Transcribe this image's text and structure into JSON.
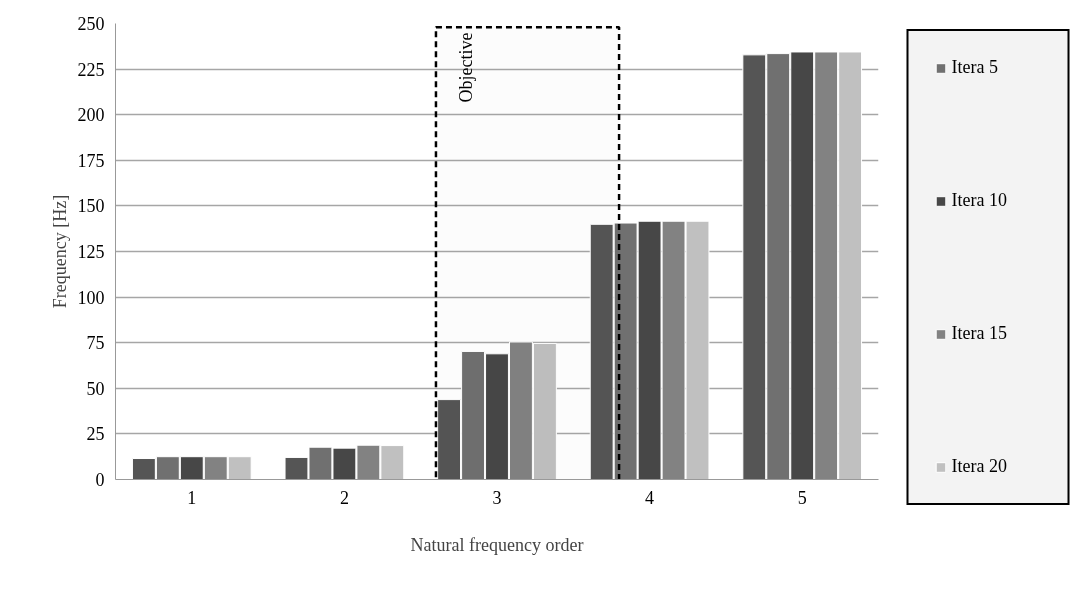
{
  "chart_data": {
    "type": "bar",
    "xlabel": "Natural frequency order",
    "ylabel": "Frequency [Hz]",
    "x": [
      1,
      2,
      3,
      4,
      5
    ],
    "xlim": [
      0.5,
      5.5
    ],
    "xticks": [
      1,
      2,
      3,
      4,
      5
    ],
    "ylim": [
      0,
      250
    ],
    "yticks": [
      0,
      25,
      50,
      75,
      100,
      125,
      150,
      175,
      200,
      225,
      250
    ],
    "grid": "y",
    "legend": "right",
    "series": [
      {
        "color": "#555555",
        "values": [
          11.5,
          12.1,
          43.8,
          139.9,
          232.8
        ]
      },
      {
        "name": "Itera 5",
        "color": "#707070",
        "values": [
          12.5,
          17.7,
          70.2,
          140.6,
          233.5
        ]
      },
      {
        "name": "Itera 10",
        "color": "#474747",
        "values": [
          12.5,
          17.2,
          68.9,
          141.6,
          234.4
        ]
      },
      {
        "name": "Itera 15",
        "color": "#828282",
        "values": [
          12.5,
          18.8,
          75.4,
          141.6,
          234.4
        ]
      },
      {
        "name": "Itera 20",
        "color": "#c0c0c0",
        "values": [
          12.5,
          18.6,
          74.6,
          141.6,
          234.4
        ]
      }
    ],
    "bands": [
      {
        "axis": "x",
        "from": 2.6,
        "to": 3.8,
        "label": "Objective",
        "color": "#000000"
      }
    ]
  }
}
